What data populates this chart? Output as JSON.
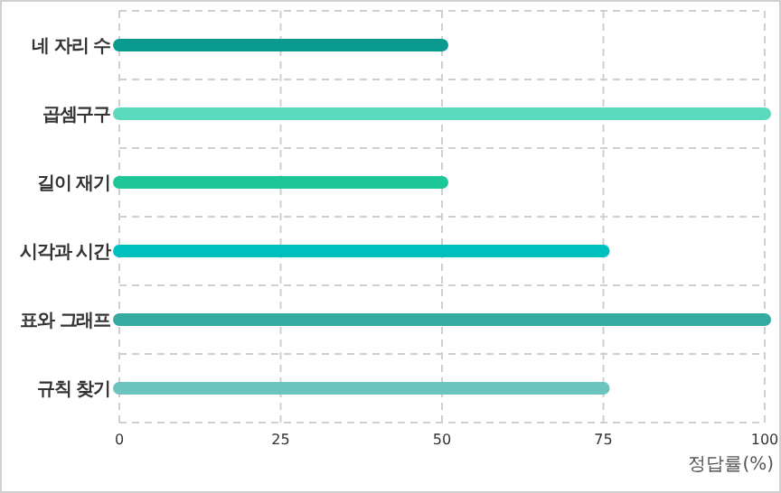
{
  "chart_data": {
    "type": "bar",
    "orientation": "horizontal",
    "xlabel": "정답률(%)",
    "categories": [
      "네 자리 수",
      "곱셈구구",
      "길이 재기",
      "시각과 시간",
      "표와 그래프",
      "규칙 찾기"
    ],
    "values": [
      50,
      100,
      50,
      75,
      100,
      75
    ],
    "colors": [
      "#0a9a90",
      "#5ad9bd",
      "#1dc79a",
      "#00c0be",
      "#35aaa0",
      "#6cc4bf"
    ],
    "xlim": [
      0,
      100
    ],
    "xticks": [
      0,
      25,
      50,
      75,
      100
    ],
    "grid": true
  }
}
